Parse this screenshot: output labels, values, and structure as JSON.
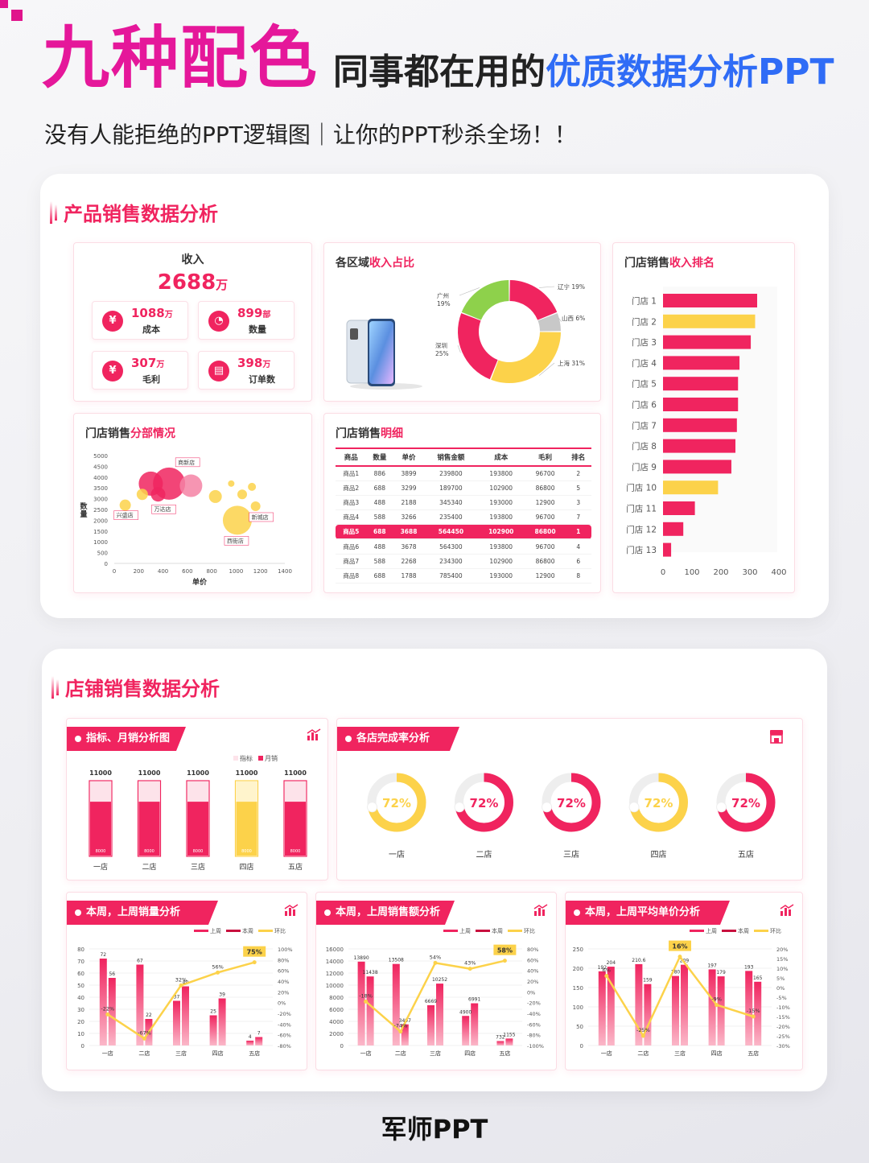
{
  "hero": {
    "big": "九种配色",
    "small_prefix": "同事都在用的",
    "small_blue": "优质数据分析PPT"
  },
  "subtitle": "没有人能拒绝的PPT逻辑图｜让你的PPT秒杀全场！！",
  "panel1": {
    "title": "产品销售数据分析",
    "kpi": {
      "head": "收入",
      "value": "2688",
      "unit": "万",
      "items": [
        {
          "value": "1088",
          "unit": "万",
          "label": "成本",
          "icon": "money-bag-icon",
          "glyph": "¥"
        },
        {
          "value": "899",
          "unit": "部",
          "label": "数量",
          "icon": "pie-icon",
          "glyph": "◔"
        },
        {
          "value": "307",
          "unit": "万",
          "label": "毛利",
          "icon": "coin-stack-icon",
          "glyph": "¥"
        },
        {
          "value": "398",
          "unit": "万",
          "label": "订单数",
          "icon": "order-icon",
          "glyph": "▤"
        }
      ]
    },
    "region": {
      "title_prefix": "各区域",
      "title_accent": "收入占比"
    },
    "ranking": {
      "title_prefix": "门店销售",
      "title_accent": "收入排名"
    },
    "bubble": {
      "title_prefix": "门店销售",
      "title_accent": "分部情况"
    },
    "detail": {
      "title_prefix": "门店销售",
      "title_accent": "明细",
      "columns": [
        "商品",
        "数量",
        "单价",
        "销售金额",
        "成本",
        "毛利",
        "排名"
      ],
      "rows": [
        [
          "商品1",
          "886",
          "3899",
          "239800",
          "193800",
          "96700",
          "2"
        ],
        [
          "商品2",
          "688",
          "3299",
          "189700",
          "102900",
          "86800",
          "5"
        ],
        [
          "商品3",
          "488",
          "2188",
          "345340",
          "193000",
          "12900",
          "3"
        ],
        [
          "商品4",
          "588",
          "3266",
          "235400",
          "193800",
          "96700",
          "7"
        ],
        [
          "商品5",
          "688",
          "3688",
          "564450",
          "102900",
          "86800",
          "1"
        ],
        [
          "商品6",
          "488",
          "3678",
          "564300",
          "193800",
          "96700",
          "4"
        ],
        [
          "商品7",
          "588",
          "2268",
          "234300",
          "102900",
          "86800",
          "6"
        ],
        [
          "商品8",
          "688",
          "1788",
          "785400",
          "193000",
          "12900",
          "8"
        ]
      ],
      "highlight_row": 4
    }
  },
  "panel2": {
    "title": "店铺销售数据分析",
    "target": {
      "title": "指标、月销分析图"
    },
    "completion": {
      "title": "各店完成率分析"
    },
    "week_qty": {
      "title": "本周，上周销量分析"
    },
    "week_amount": {
      "title": "本周，上周销售额分析"
    },
    "week_price": {
      "title": "本周，上周平均单价分析"
    }
  },
  "colors": {
    "pink": "#f0245f",
    "yellow": "#fcd24a",
    "green": "#8ed14b",
    "gray": "#c8c8c8",
    "light_pink": "#fde3ea"
  },
  "footer": "军师PPT",
  "chart_data": [
    {
      "id": "region-share",
      "type": "pie",
      "categories": [
        "辽宁",
        "山西",
        "上海",
        "深圳",
        "广州"
      ],
      "values": [
        19,
        6,
        31,
        25,
        19
      ],
      "labels": [
        "辽宁 19%",
        "山西 6%",
        "上海 31%",
        "深圳\n25%",
        "广州\n19%"
      ],
      "colors": [
        "#f0245f",
        "#c8c8c8",
        "#fcd24a",
        "#f0245f",
        "#8ed14b"
      ]
    },
    {
      "id": "store-ranking",
      "type": "bar",
      "orientation": "horizontal",
      "categories": [
        "门店 1",
        "门店 2",
        "门店 3",
        "门店 4",
        "门店 5",
        "门店 6",
        "门店 7",
        "门店 8",
        "门店 9",
        "门店 10",
        "门店 11",
        "门店 12",
        "门店 13"
      ],
      "values": [
        325,
        318,
        303,
        264,
        259,
        259,
        255,
        250,
        236,
        190,
        110,
        70,
        28
      ],
      "highlight": [
        1,
        9
      ],
      "xlim": [
        0,
        400
      ],
      "xticks": [
        0,
        100,
        200,
        300,
        400
      ]
    },
    {
      "id": "store-distribution",
      "type": "scatter",
      "xlabel": "单价",
      "ylabel": "数量",
      "xlim": [
        0,
        1400
      ],
      "ylim": [
        0,
        5000
      ],
      "xticks": [
        0,
        200,
        400,
        600,
        800,
        1000,
        1200,
        1400
      ],
      "yticks": [
        0,
        500,
        1000,
        1500,
        2000,
        2500,
        3000,
        3500,
        4000,
        4500,
        5000
      ],
      "points": [
        {
          "x": 300,
          "y": 3700,
          "r": 15,
          "color": "#f0245f",
          "label": ""
        },
        {
          "x": 450,
          "y": 3700,
          "r": 20,
          "color": "#f0245f",
          "label": "商新店"
        },
        {
          "x": 630,
          "y": 3600,
          "r": 14,
          "color": "#f582a4",
          "label": ""
        },
        {
          "x": 360,
          "y": 3200,
          "r": 9,
          "color": "#f0245f",
          "label": "万达店"
        },
        {
          "x": 230,
          "y": 3200,
          "r": 7,
          "color": "#fcd24a",
          "label": ""
        },
        {
          "x": 90,
          "y": 2700,
          "r": 7,
          "color": "#fcd24a",
          "label": "兴盛店"
        },
        {
          "x": 830,
          "y": 3100,
          "r": 8,
          "color": "#fcd24a",
          "label": ""
        },
        {
          "x": 1050,
          "y": 3200,
          "r": 6,
          "color": "#fcd24a",
          "label": ""
        },
        {
          "x": 1130,
          "y": 3550,
          "r": 5,
          "color": "#fcd24a",
          "label": ""
        },
        {
          "x": 960,
          "y": 3700,
          "r": 4,
          "color": "#fcd24a",
          "label": ""
        },
        {
          "x": 1010,
          "y": 2000,
          "r": 18,
          "color": "#fcd24a",
          "label": "西街店"
        },
        {
          "x": 1160,
          "y": 2650,
          "r": 6,
          "color": "#fcd24a",
          "label": "新城店"
        }
      ]
    },
    {
      "id": "target-monthly",
      "type": "bar",
      "categories": [
        "一店",
        "二店",
        "三店",
        "四店",
        "五店"
      ],
      "series": [
        {
          "name": "指标",
          "values": [
            11000,
            11000,
            11000,
            11000,
            11000
          ]
        },
        {
          "name": "月销",
          "values": [
            8000,
            8000,
            8000,
            8000,
            8000
          ]
        }
      ],
      "highlight": [
        3
      ]
    },
    {
      "id": "completion-rate",
      "type": "pie",
      "categories": [
        "一店",
        "二店",
        "三店",
        "四店",
        "五店"
      ],
      "values": [
        72,
        72,
        72,
        72,
        72
      ],
      "colors": [
        "#fcd24a",
        "#f0245f",
        "#f0245f",
        "#fcd24a",
        "#f0245f"
      ]
    },
    {
      "id": "week-qty",
      "type": "bar",
      "categories": [
        "一店",
        "二店",
        "三店",
        "四店",
        "五店"
      ],
      "series": [
        {
          "name": "上周",
          "values": [
            72,
            67,
            37,
            25,
            4
          ]
        },
        {
          "name": "本周",
          "values": [
            56,
            22,
            49,
            39,
            7
          ]
        },
        {
          "name": "环比",
          "values": [
            -22,
            -67,
            32,
            56,
            75
          ]
        }
      ],
      "ylim": [
        0,
        80
      ],
      "yticks": [
        0,
        10,
        20,
        30,
        40,
        50,
        60,
        70,
        80
      ],
      "y2lim": [
        -80,
        100
      ],
      "y2ticks": [
        "-80%",
        "-60%",
        "-40%",
        "-20%",
        "0%",
        "20%",
        "40%",
        "60%",
        "80%",
        "100%"
      ],
      "ratio_labels": [
        "-22%",
        "-67%",
        "32%",
        "56%",
        "75%"
      ]
    },
    {
      "id": "week-amount",
      "type": "bar",
      "categories": [
        "一店",
        "二店",
        "三店",
        "四店",
        "五店"
      ],
      "series": [
        {
          "name": "上周",
          "values": [
            13890,
            13508,
            6669,
            4900,
            732
          ]
        },
        {
          "name": "本周",
          "values": [
            11438,
            3497,
            10252,
            6991,
            1155
          ]
        },
        {
          "name": "环比",
          "values": [
            -18,
            -74,
            54,
            43,
            58
          ]
        }
      ],
      "ylim": [
        0,
        16000
      ],
      "yticks": [
        0,
        2000,
        4000,
        6000,
        8000,
        10000,
        12000,
        14000,
        16000
      ],
      "y2lim": [
        -100,
        80
      ],
      "y2ticks": [
        "-100%",
        "-80%",
        "-60%",
        "-40%",
        "-20%",
        "0%",
        "20%",
        "40%",
        "60%",
        "80%"
      ],
      "ratio_labels": [
        "-18%",
        "-74%",
        "54%",
        "43%",
        "58%"
      ]
    },
    {
      "id": "week-price",
      "type": "bar",
      "categories": [
        "一店",
        "二店",
        "三店",
        "四店",
        "五店"
      ],
      "series": [
        {
          "name": "上周",
          "values": [
            192,
            210.6,
            180,
            197,
            193
          ]
        },
        {
          "name": "本周",
          "values": [
            204,
            159,
            209,
            179,
            165
          ]
        },
        {
          "name": "环比",
          "values": [
            6,
            -25,
            16,
            -9,
            -15
          ]
        }
      ],
      "ylim": [
        0,
        250
      ],
      "yticks": [
        0,
        50,
        100,
        150,
        200,
        250
      ],
      "y2lim": [
        -30,
        20
      ],
      "y2ticks": [
        "-30%",
        "-25%",
        "-20%",
        "-15%",
        "-10%",
        "-5%",
        "0%",
        "5%",
        "10%",
        "15%",
        "20%"
      ],
      "ratio_labels": [
        "6%",
        "-25%",
        "16%",
        "-9%",
        "-15%"
      ]
    }
  ]
}
